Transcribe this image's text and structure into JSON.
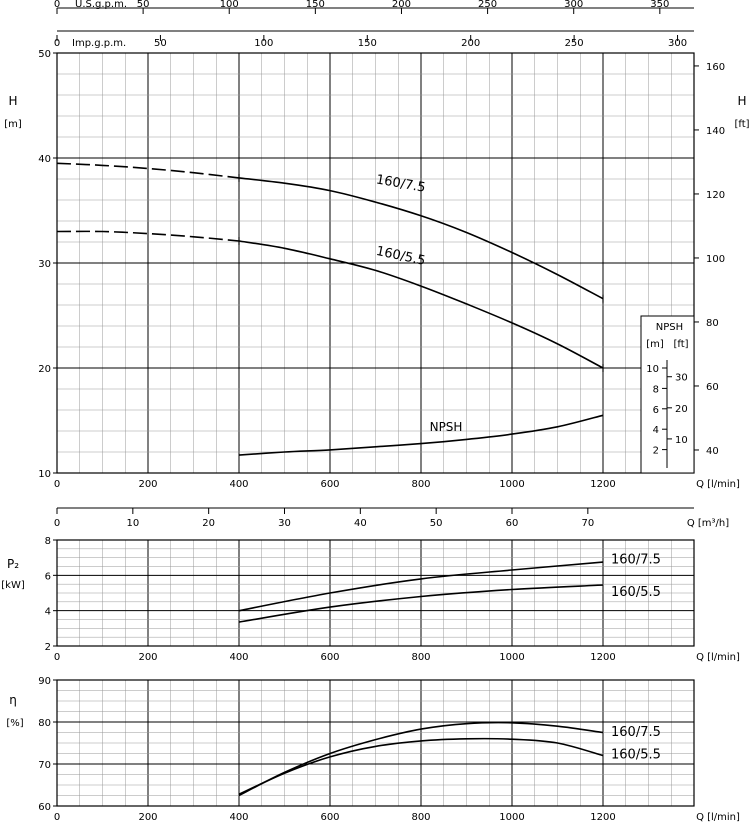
{
  "scales": {
    "us_gpm": {
      "label": "U.S.g.p.m.",
      "ticks": [
        0,
        50,
        100,
        150,
        200,
        250,
        300,
        350
      ]
    },
    "imp_gpm": {
      "label": "Imp.g.p.m.",
      "ticks": [
        0,
        50,
        100,
        150,
        200,
        250,
        300
      ]
    },
    "m3h": {
      "label": "Q [m³/h]",
      "ticks": [
        0,
        10,
        20,
        30,
        40,
        50,
        60,
        70
      ]
    }
  },
  "axis_labels": {
    "h_left": "H",
    "h_left_unit": "[m]",
    "h_right": "H",
    "h_right_unit": "[ft]",
    "q_lmin": "Q [l/min]",
    "p2": "P₂",
    "p2_unit": "[kW]",
    "eta": "η",
    "eta_unit": "[%]",
    "npsh_box_title": "NPSH",
    "npsh_m": "[m]",
    "npsh_ft": "[ft]"
  },
  "chart_data": [
    {
      "type": "line",
      "name": "head",
      "xlabel": "Q [l/min]",
      "ylabel": "H [m]",
      "xlim": [
        0,
        1400
      ],
      "ylim": [
        10,
        50
      ],
      "x_ticks": [
        0,
        200,
        400,
        600,
        800,
        1000,
        1200
      ],
      "y_ticks": [
        10,
        20,
        30,
        40,
        50
      ],
      "y2_label": "H [ft]",
      "y2_ticks": [
        40,
        60,
        80,
        100,
        120,
        140,
        160
      ],
      "series": [
        {
          "name": "160/7.5",
          "dashed_to": 400,
          "x": [
            0,
            100,
            200,
            300,
            400,
            500,
            600,
            700,
            800,
            900,
            1000,
            1100,
            1200
          ],
          "y": [
            39.5,
            39.3,
            39.0,
            38.6,
            38.1,
            37.6,
            36.9,
            35.8,
            34.5,
            32.9,
            31.0,
            28.9,
            26.6
          ]
        },
        {
          "name": "160/5.5",
          "dashed_to": 400,
          "x": [
            0,
            100,
            200,
            300,
            400,
            500,
            600,
            700,
            800,
            900,
            1000,
            1100,
            1200
          ],
          "y": [
            33.0,
            33.0,
            32.8,
            32.5,
            32.1,
            31.4,
            30.4,
            29.3,
            27.8,
            26.1,
            24.3,
            22.3,
            20.0
          ]
        },
        {
          "name": "NPSH",
          "x": [
            400,
            500,
            600,
            700,
            800,
            900,
            1000,
            1100,
            1200
          ],
          "y": [
            11.7,
            12.0,
            12.2,
            12.5,
            12.8,
            13.2,
            13.7,
            14.4,
            15.5
          ]
        }
      ],
      "npsh_scale": {
        "m_ticks": [
          2,
          4,
          6,
          8,
          10
        ],
        "ft_ticks": [
          10,
          20,
          30
        ]
      }
    },
    {
      "type": "line",
      "name": "power",
      "xlabel": "Q [l/min]",
      "ylabel": "P2 [kW]",
      "xlim": [
        0,
        1400
      ],
      "ylim": [
        2,
        8
      ],
      "x_ticks": [
        0,
        200,
        400,
        600,
        800,
        1000,
        1200
      ],
      "y_ticks": [
        2,
        4,
        6,
        8
      ],
      "series": [
        {
          "name": "160/7.5",
          "x": [
            400,
            600,
            800,
            1000,
            1200
          ],
          "y": [
            4.0,
            5.0,
            5.8,
            6.3,
            6.75
          ]
        },
        {
          "name": "160/5.5",
          "x": [
            400,
            600,
            800,
            1000,
            1200
          ],
          "y": [
            3.35,
            4.2,
            4.8,
            5.2,
            5.45
          ]
        }
      ]
    },
    {
      "type": "line",
      "name": "efficiency",
      "xlabel": "Q [l/min]",
      "ylabel": "η [%]",
      "xlim": [
        0,
        1400
      ],
      "ylim": [
        60,
        90
      ],
      "x_ticks": [
        0,
        200,
        400,
        600,
        800,
        1000,
        1200
      ],
      "y_ticks": [
        60,
        70,
        80,
        90
      ],
      "series": [
        {
          "name": "160/7.5",
          "x": [
            400,
            500,
            600,
            700,
            800,
            900,
            1000,
            1100,
            1200
          ],
          "y": [
            62.5,
            68.0,
            72.5,
            75.8,
            78.3,
            79.6,
            79.8,
            79.0,
            77.5
          ]
        },
        {
          "name": "160/5.5",
          "x": [
            400,
            500,
            600,
            700,
            800,
            900,
            1000,
            1100,
            1200
          ],
          "y": [
            62.8,
            67.8,
            71.7,
            74.2,
            75.5,
            76.0,
            75.9,
            75.0,
            72.0
          ]
        }
      ]
    }
  ]
}
